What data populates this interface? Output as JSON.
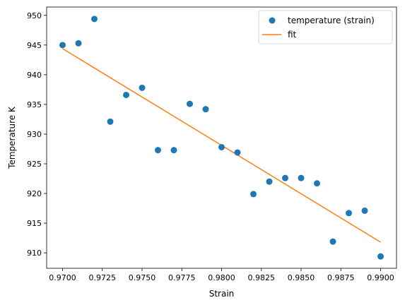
{
  "chart_data": {
    "type": "scatter",
    "xlabel": "Strain",
    "ylabel": "Temperature K",
    "xlim": [
      0.969,
      0.991
    ],
    "ylim": [
      907.4,
      951.4
    ],
    "xticks": [
      0.97,
      0.9725,
      0.975,
      0.9775,
      0.98,
      0.9825,
      0.985,
      0.9875,
      0.99
    ],
    "xtick_labels": [
      "0.9700",
      "0.9725",
      "0.9750",
      "0.9775",
      "0.9800",
      "0.9825",
      "0.9850",
      "0.9875",
      "0.9900"
    ],
    "yticks": [
      910,
      915,
      920,
      925,
      930,
      935,
      940,
      945,
      950
    ],
    "ytick_labels": [
      "910",
      "915",
      "920",
      "925",
      "930",
      "935",
      "940",
      "945",
      "950"
    ],
    "grid": false,
    "legend_position": "top-right",
    "series": [
      {
        "name": "temperature (strain)",
        "kind": "scatter",
        "color": "#1f77b4",
        "x": [
          0.97,
          0.971,
          0.972,
          0.973,
          0.974,
          0.975,
          0.976,
          0.977,
          0.978,
          0.979,
          0.98,
          0.981,
          0.982,
          0.983,
          0.984,
          0.985,
          0.986,
          0.987,
          0.988,
          0.989,
          0.99
        ],
        "y": [
          945.0,
          945.3,
          949.4,
          932.1,
          936.6,
          937.8,
          927.3,
          927.3,
          935.1,
          934.2,
          927.8,
          926.9,
          919.9,
          922.0,
          922.6,
          922.6,
          921.7,
          911.9,
          916.7,
          917.1,
          909.4
        ]
      },
      {
        "name": "fit",
        "kind": "line",
        "color": "#ff7f0e",
        "x": [
          0.97,
          0.99
        ],
        "y": [
          944.4,
          911.8
        ]
      }
    ]
  }
}
